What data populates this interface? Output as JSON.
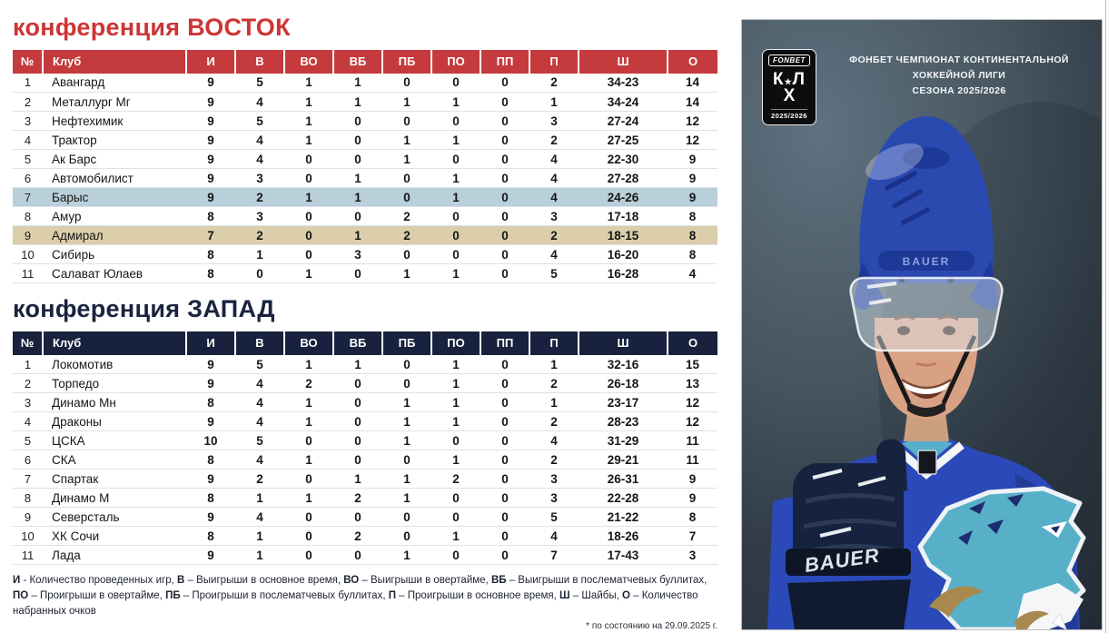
{
  "colors": {
    "east_title": "#cf3434",
    "east_accent": "#c53a3c",
    "west_title": "#1a2440",
    "west_accent": "#18223e",
    "highlight_blue": "#b9cfd9",
    "highlight_tan": "#dcceaa",
    "row_border": "#d8e4ea",
    "photo_bg_light": "#5f7280",
    "photo_bg_dark": "#232c37",
    "helmet_blue": "#2a4ab0",
    "helmet_blue_dark": "#1d3896",
    "jersey_blue": "#2b49b8",
    "logo_teal": "#57b0c8",
    "logo_gold": "#a8894e",
    "glove_navy": "#16233f"
  },
  "east": {
    "title": "конференция ВОСТОК",
    "columns": [
      "№",
      "Клуб",
      "И",
      "В",
      "ВО",
      "ВБ",
      "ПБ",
      "ПО",
      "ПП",
      "П",
      "Ш",
      "О"
    ],
    "rows": [
      {
        "cells": [
          "1",
          "Авангард",
          "9",
          "5",
          "1",
          "1",
          "0",
          "0",
          "0",
          "2",
          "34-23",
          "14"
        ],
        "highlight": null
      },
      {
        "cells": [
          "2",
          "Металлург Мг",
          "9",
          "4",
          "1",
          "1",
          "1",
          "1",
          "0",
          "1",
          "34-24",
          "14"
        ],
        "highlight": null
      },
      {
        "cells": [
          "3",
          "Нефтехимик",
          "9",
          "5",
          "1",
          "0",
          "0",
          "0",
          "0",
          "3",
          "27-24",
          "12"
        ],
        "highlight": null
      },
      {
        "cells": [
          "4",
          "Трактор",
          "9",
          "4",
          "1",
          "0",
          "1",
          "1",
          "0",
          "2",
          "27-25",
          "12"
        ],
        "highlight": null
      },
      {
        "cells": [
          "5",
          "Ак Барс",
          "9",
          "4",
          "0",
          "0",
          "1",
          "0",
          "0",
          "4",
          "22-30",
          "9"
        ],
        "highlight": null
      },
      {
        "cells": [
          "6",
          "Автомобилист",
          "9",
          "3",
          "0",
          "1",
          "0",
          "1",
          "0",
          "4",
          "27-28",
          "9"
        ],
        "highlight": null
      },
      {
        "cells": [
          "7",
          "Барыс",
          "9",
          "2",
          "1",
          "1",
          "0",
          "1",
          "0",
          "4",
          "24-26",
          "9"
        ],
        "highlight": "blue"
      },
      {
        "cells": [
          "8",
          "Амур",
          "8",
          "3",
          "0",
          "0",
          "2",
          "0",
          "0",
          "3",
          "17-18",
          "8"
        ],
        "highlight": null
      },
      {
        "cells": [
          "9",
          "Адмирал",
          "7",
          "2",
          "0",
          "1",
          "2",
          "0",
          "0",
          "2",
          "18-15",
          "8"
        ],
        "highlight": "tan"
      },
      {
        "cells": [
          "10",
          "Сибирь",
          "8",
          "1",
          "0",
          "3",
          "0",
          "0",
          "0",
          "4",
          "16-20",
          "8"
        ],
        "highlight": null
      },
      {
        "cells": [
          "11",
          "Салават Юлаев",
          "8",
          "0",
          "1",
          "0",
          "1",
          "1",
          "0",
          "5",
          "16-28",
          "4"
        ],
        "highlight": null
      }
    ]
  },
  "west": {
    "title": "конференция ЗАПАД",
    "columns": [
      "№",
      "Клуб",
      "И",
      "В",
      "ВО",
      "ВБ",
      "ПБ",
      "ПО",
      "ПП",
      "П",
      "Ш",
      "О"
    ],
    "rows": [
      {
        "cells": [
          "1",
          "Локомотив",
          "9",
          "5",
          "1",
          "1",
          "0",
          "1",
          "0",
          "1",
          "32-16",
          "15"
        ],
        "highlight": null
      },
      {
        "cells": [
          "2",
          "Торпедо",
          "9",
          "4",
          "2",
          "0",
          "0",
          "1",
          "0",
          "2",
          "26-18",
          "13"
        ],
        "highlight": null
      },
      {
        "cells": [
          "3",
          "Динамо Мн",
          "8",
          "4",
          "1",
          "0",
          "1",
          "1",
          "0",
          "1",
          "23-17",
          "12"
        ],
        "highlight": null
      },
      {
        "cells": [
          "4",
          "Драконы",
          "9",
          "4",
          "1",
          "0",
          "1",
          "1",
          "0",
          "2",
          "28-23",
          "12"
        ],
        "highlight": null
      },
      {
        "cells": [
          "5",
          "ЦСКА",
          "10",
          "5",
          "0",
          "0",
          "1",
          "0",
          "0",
          "4",
          "31-29",
          "11"
        ],
        "highlight": null
      },
      {
        "cells": [
          "6",
          "СКА",
          "8",
          "4",
          "1",
          "0",
          "0",
          "1",
          "0",
          "2",
          "29-21",
          "11"
        ],
        "highlight": null
      },
      {
        "cells": [
          "7",
          "Спартак",
          "9",
          "2",
          "0",
          "1",
          "1",
          "2",
          "0",
          "3",
          "26-31",
          "9"
        ],
        "highlight": null
      },
      {
        "cells": [
          "8",
          "Динамо М",
          "8",
          "1",
          "1",
          "2",
          "1",
          "0",
          "0",
          "3",
          "22-28",
          "9"
        ],
        "highlight": null
      },
      {
        "cells": [
          "9",
          "Северсталь",
          "9",
          "4",
          "0",
          "0",
          "0",
          "0",
          "0",
          "5",
          "21-22",
          "8"
        ],
        "highlight": null
      },
      {
        "cells": [
          "10",
          "ХК Сочи",
          "8",
          "1",
          "0",
          "2",
          "0",
          "1",
          "0",
          "4",
          "18-26",
          "7"
        ],
        "highlight": null
      },
      {
        "cells": [
          "11",
          "Лада",
          "9",
          "1",
          "0",
          "0",
          "1",
          "0",
          "0",
          "7",
          "17-43",
          "3"
        ],
        "highlight": null
      }
    ]
  },
  "legend": {
    "items": [
      {
        "term": "И",
        "sep": " - ",
        "desc": "Количество проведенных игр"
      },
      {
        "term": "В",
        "sep": " – ",
        "desc": "Выигрыши в основное время"
      },
      {
        "term": "ВО",
        "sep": " – ",
        "desc": "Выигрыши в овертайме"
      },
      {
        "term": "ВБ",
        "sep": " – ",
        "desc": "Выигрыши в послематчевых буллитах"
      },
      {
        "term": "ПО",
        "sep": " – ",
        "desc": "Проигрыши в овертайме"
      },
      {
        "term": "ПБ",
        "sep": " – ",
        "desc": "Проигрыши в послематчевых буллитах"
      },
      {
        "term": "П",
        "sep": " – ",
        "desc": "Проигрыши в основное время"
      },
      {
        "term": "Ш",
        "sep": " – ",
        "desc": "Шайбы"
      },
      {
        "term": "О",
        "sep": " – ",
        "desc": "Количество набранных очков"
      }
    ]
  },
  "footnote": "* по состоянию на  29.09.2025 г.",
  "photo_panel": {
    "caption_line1": "ФОНБЕТ ЧЕМПИОНАТ КОНТИНЕНТАЛЬНОЙ ХОККЕЙНОЙ ЛИГИ",
    "caption_line2": "СЕЗОНА 2025/2026",
    "badge": {
      "sponsor": "FONBET",
      "letter_k": "К",
      "letter_l": "Л",
      "letter_x": "Х",
      "star": "★",
      "seasons": "2025/2026"
    },
    "helmet_brand": "BAUER",
    "glove_brand": "BAUER"
  }
}
